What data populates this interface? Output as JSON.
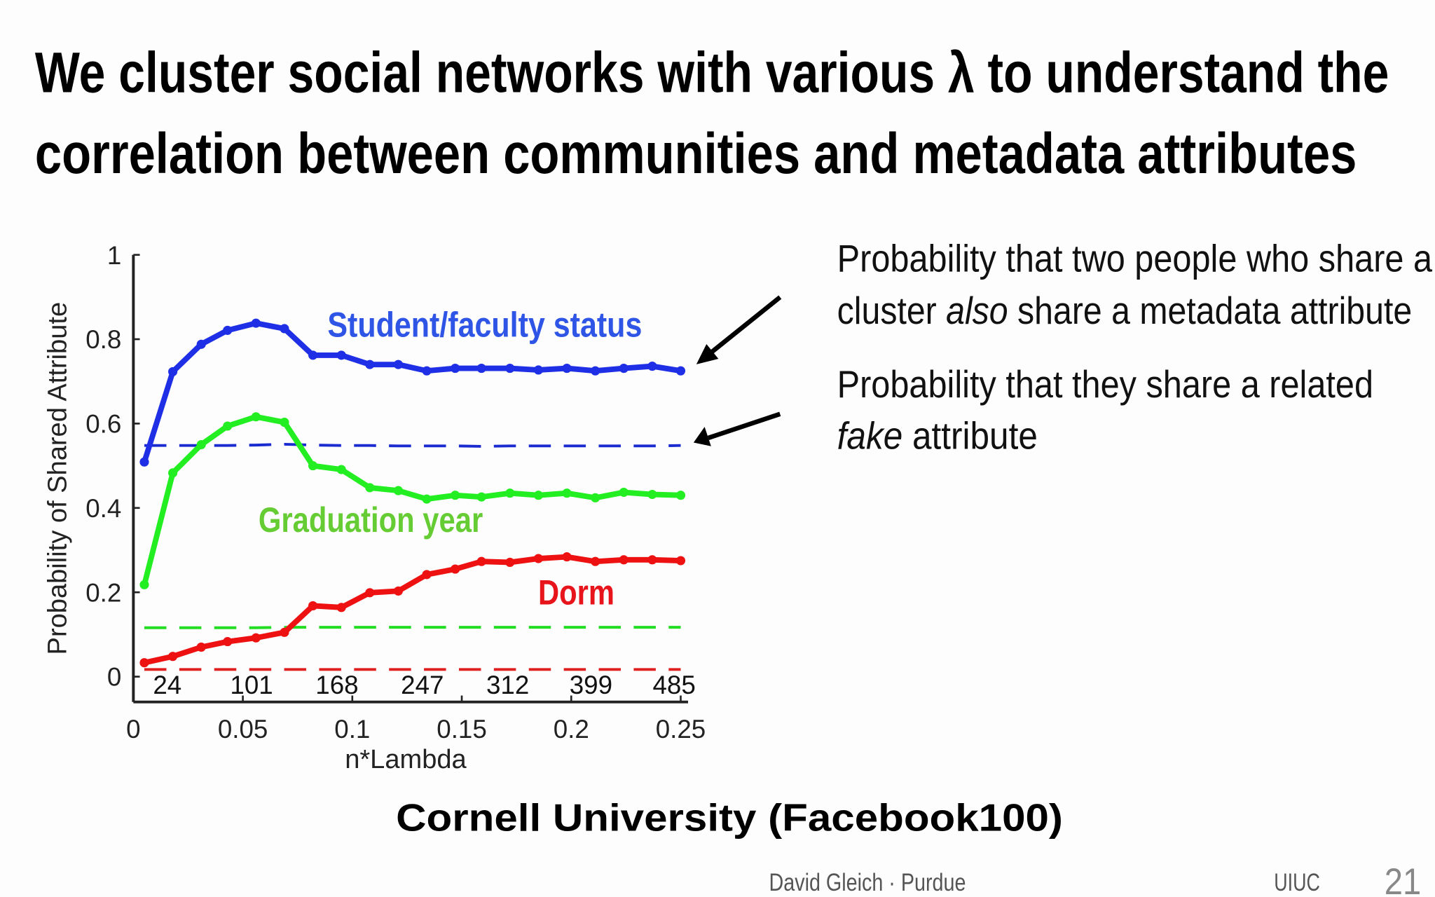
{
  "slide": {
    "title_lines": [
      "We cluster social networks with various λ to understand the",
      "correlation between communities and metadata attributes"
    ],
    "notes": [
      {
        "lines": [
          [
            {
              "text": "Probability that two people who share a",
              "italic": false
            }
          ],
          [
            {
              "text": "cluster ",
              "italic": false
            },
            {
              "text": "also",
              "italic": true
            },
            {
              "text": " share a metadata attribute",
              "italic": false
            }
          ]
        ]
      },
      {
        "lines": [
          [
            {
              "text": "Probability that they share a related",
              "italic": false
            }
          ],
          [
            {
              "text": "fake",
              "italic": true
            },
            {
              "text": " attribute",
              "italic": false
            }
          ]
        ]
      }
    ],
    "footer": {
      "author": "David Gleich · Purdue",
      "venue": "UIUC",
      "page": 21
    }
  },
  "chart_data": {
    "type": "line",
    "caption": "Cornell University (Facebook100)",
    "xlabel": "n*Lambda",
    "ylabel": "Probability of Shared Attribute",
    "x": [
      0.005,
      0.018,
      0.031,
      0.043,
      0.056,
      0.069,
      0.082,
      0.095,
      0.108,
      0.121,
      0.134,
      0.147,
      0.159,
      0.172,
      0.185,
      0.198,
      0.211,
      0.224,
      0.237,
      0.25
    ],
    "series": [
      {
        "name": "Student/faculty status",
        "color": "#1f2fe6",
        "label_color": "#2f55e6",
        "markers": true,
        "values": [
          0.509,
          0.723,
          0.788,
          0.821,
          0.838,
          0.825,
          0.762,
          0.762,
          0.74,
          0.74,
          0.725,
          0.731,
          0.731,
          0.731,
          0.727,
          0.731,
          0.725,
          0.731,
          0.736,
          0.725
        ]
      },
      {
        "name": "Graduation year",
        "color": "#22ee22",
        "label_color": "#66cc33",
        "markers": true,
        "values": [
          0.218,
          0.483,
          0.55,
          0.594,
          0.616,
          0.603,
          0.5,
          0.491,
          0.448,
          0.441,
          0.421,
          0.43,
          0.426,
          0.435,
          0.43,
          0.435,
          0.424,
          0.437,
          0.432,
          0.43
        ]
      },
      {
        "name": "Dorm",
        "color": "#ee1111",
        "label_color": "#e8141b",
        "markers": true,
        "values": [
          0.033,
          0.048,
          0.07,
          0.083,
          0.092,
          0.105,
          0.168,
          0.164,
          0.199,
          0.203,
          0.242,
          0.255,
          0.273,
          0.271,
          0.28,
          0.284,
          0.273,
          0.277,
          0.277,
          0.275
        ]
      },
      {
        "color": "#1a2bd0",
        "dashed": true,
        "values": [
          0.548,
          0.548,
          0.548,
          0.548,
          0.549,
          0.551,
          0.549,
          0.548,
          0.548,
          0.547,
          0.547,
          0.547,
          0.546,
          0.547,
          0.547,
          0.547,
          0.547,
          0.547,
          0.547,
          0.548
        ]
      },
      {
        "color": "#22dd22",
        "dashed": true,
        "values": [
          0.116,
          0.116,
          0.116,
          0.116,
          0.116,
          0.117,
          0.117,
          0.117,
          0.117,
          0.117,
          0.117,
          0.117,
          0.117,
          0.117,
          0.117,
          0.117,
          0.117,
          0.117,
          0.117,
          0.117
        ]
      },
      {
        "color": "#e02020",
        "dashed": true,
        "values": [
          0.017,
          0.017,
          0.017,
          0.017,
          0.017,
          0.017,
          0.017,
          0.017,
          0.017,
          0.017,
          0.017,
          0.017,
          0.017,
          0.017,
          0.017,
          0.017,
          0.017,
          0.017,
          0.017,
          0.017
        ]
      }
    ],
    "top_labels": {
      "x": [
        0.0155,
        0.054,
        0.093,
        0.132,
        0.171,
        0.209,
        0.247
      ],
      "values": [
        24,
        101,
        168,
        247,
        312,
        399,
        485
      ]
    },
    "xlim": [
      0,
      0.25
    ],
    "ylim": [
      -0.06,
      1
    ],
    "xticks": [
      0,
      0.05,
      0.1,
      0.15,
      0.2,
      0.25
    ],
    "yticks": [
      0,
      0.2,
      0.4,
      0.6,
      0.8,
      1
    ]
  }
}
